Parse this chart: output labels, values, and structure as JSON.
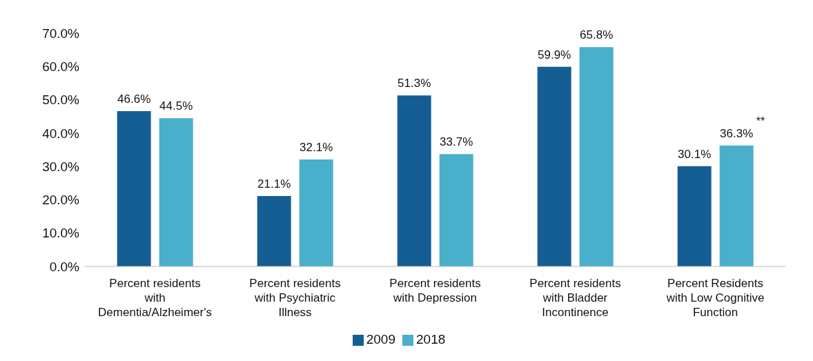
{
  "chart_data": {
    "type": "bar",
    "categories": [
      "Percent residents with Dementia/Alzheimer's",
      "Percent residents with Psychiatric Illness",
      "Percent residents with Depression",
      "Percent residents with Bladder Incontinence",
      "Percent Residents with Low Cognitive Function"
    ],
    "series": [
      {
        "name": "2009",
        "color": "#155e94",
        "values": [
          46.6,
          21.1,
          51.3,
          59.9,
          30.1
        ],
        "value_labels": [
          "46.6%",
          "21.1%",
          "51.3%",
          "59.9%",
          "30.1%"
        ]
      },
      {
        "name": "2018",
        "color": "#4aafca",
        "values": [
          44.5,
          32.1,
          33.7,
          65.8,
          36.3
        ],
        "value_labels": [
          "44.5%",
          "32.1%",
          "33.7%",
          "65.8%",
          "36.3%"
        ]
      }
    ],
    "ylim": [
      0,
      70
    ],
    "yticks": [
      {
        "value": 0,
        "label": "0.0%"
      },
      {
        "value": 10,
        "label": "10.0%"
      },
      {
        "value": 20,
        "label": "20.0%"
      },
      {
        "value": 30,
        "label": "30.0%"
      },
      {
        "value": 40,
        "label": "40.0%"
      },
      {
        "value": 50,
        "label": "50.0%"
      },
      {
        "value": 60,
        "label": "60.0%"
      },
      {
        "value": 70,
        "label": "70.0%"
      }
    ],
    "annotations": [
      "**"
    ],
    "grid": false,
    "legend": "bottom"
  }
}
